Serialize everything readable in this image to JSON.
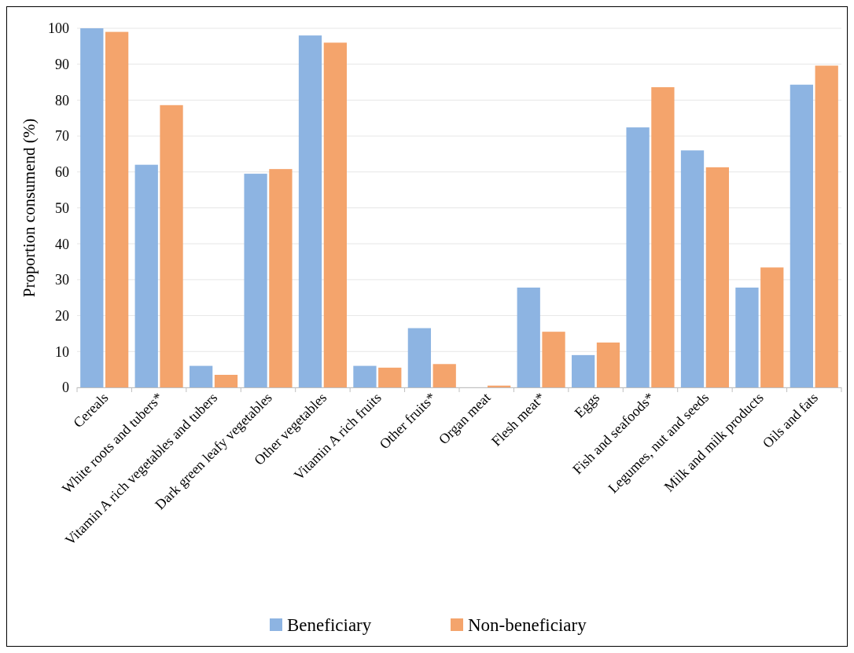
{
  "chart_data": {
    "type": "bar",
    "ylabel": "Proportion consumend (%)",
    "categories": [
      "Cereals",
      "White roots and tubers*",
      "Vitamin A rich vegetables and tubers",
      "Dark green leafy vegetables",
      "Other vegetables",
      "Vitamin A rich fruits",
      "Other fruits*",
      "Organ meat",
      "Flesh meat*",
      "Eggs",
      "Fish and seafoods*",
      "Legumes, nut and seeds",
      "Milk and milk products",
      "Oils and fats"
    ],
    "series": [
      {
        "name": "Beneficiary",
        "color": "#8db4e2",
        "values": [
          100,
          62,
          6,
          59.5,
          98,
          6,
          16.5,
          0,
          27.8,
          9,
          72.4,
          66,
          27.8,
          84.3
        ]
      },
      {
        "name": "Non-beneficiary",
        "color": "#f4a46c",
        "values": [
          99,
          78.6,
          3.5,
          60.8,
          96,
          5.5,
          6.5,
          0.5,
          15.5,
          12.5,
          83.6,
          61.3,
          33.4,
          89.6
        ]
      }
    ],
    "ylim": [
      0,
      100
    ],
    "yticks": [
      0,
      10,
      20,
      30,
      40,
      50,
      60,
      70,
      80,
      90,
      100
    ],
    "grid": "y",
    "legend": "bottom"
  }
}
